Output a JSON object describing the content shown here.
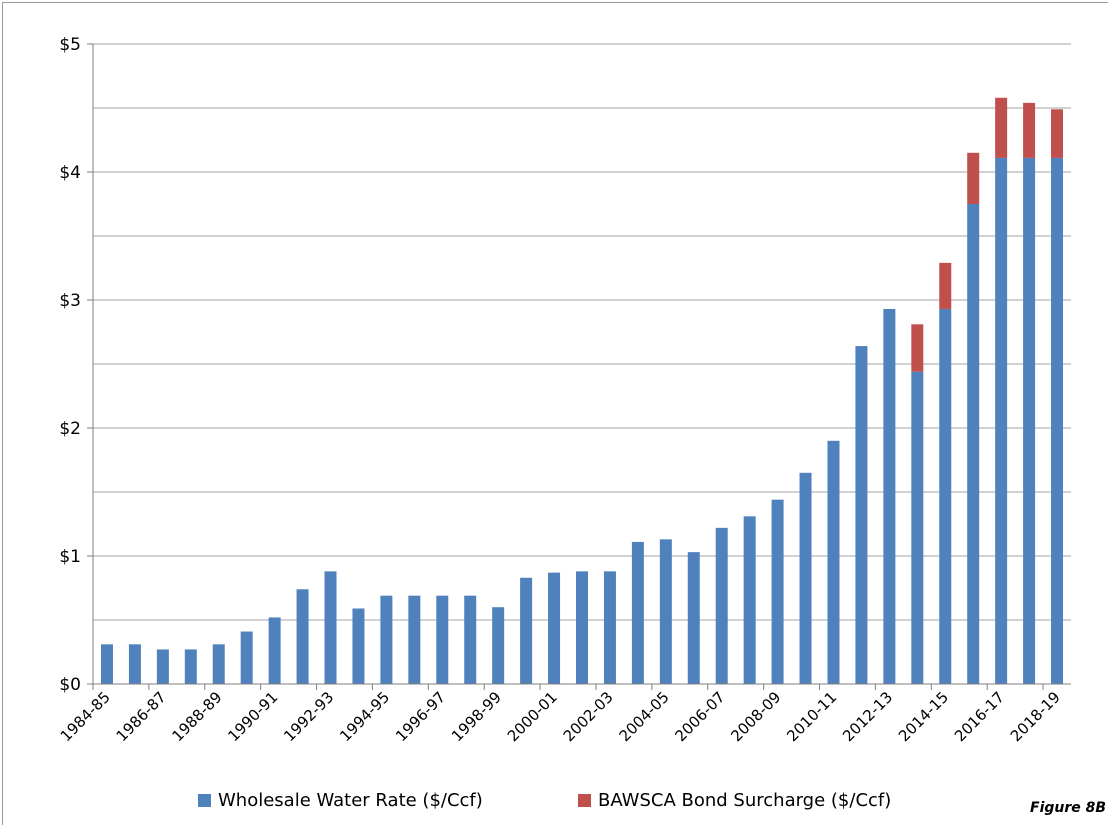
{
  "figure_label": "Figure 8B",
  "colors": {
    "wholesale": "#4f81bd",
    "surcharge": "#c0504d",
    "gridline": "#a6a6a6",
    "axis": "#7f7f7f"
  },
  "chart_data": {
    "type": "bar",
    "stacked": true,
    "categories": [
      "1984-85",
      "1985-86",
      "1986-87",
      "1987-88",
      "1988-89",
      "1989-90",
      "1990-91",
      "1991-92",
      "1992-93",
      "1993-94",
      "1994-95",
      "1995-96",
      "1996-97",
      "1997-98",
      "1998-99",
      "1999-00",
      "2000-01",
      "2001-02",
      "2002-03",
      "2003-04",
      "2004-05",
      "2005-06",
      "2006-07",
      "2007-08",
      "2008-09",
      "2009-10",
      "2010-11",
      "2011-12",
      "2012-13",
      "2013-14",
      "2014-15",
      "2015-16",
      "2016-17",
      "2017-18",
      "2018-19"
    ],
    "x_tick_labels": [
      "1984-85",
      "1986-87",
      "1988-89",
      "1990-91",
      "1992-93",
      "1994-95",
      "1996-97",
      "1998-99",
      "2000-01",
      "2002-03",
      "2004-05",
      "2006-07",
      "2008-09",
      "2010-11",
      "2012-13",
      "2014-15",
      "2016-17",
      "2018-19"
    ],
    "series": [
      {
        "name": "Wholesale Water Rate ($/Ccf)",
        "values": [
          0.31,
          0.31,
          0.27,
          0.27,
          0.31,
          0.41,
          0.52,
          0.74,
          0.88,
          0.59,
          0.69,
          0.69,
          0.69,
          0.69,
          0.6,
          0.83,
          0.87,
          0.88,
          0.88,
          1.11,
          1.13,
          1.03,
          1.22,
          1.31,
          1.44,
          1.65,
          1.9,
          2.64,
          2.93,
          2.44,
          2.93,
          3.75,
          4.11,
          4.11,
          4.11
        ]
      },
      {
        "name": "BAWSCA Bond Surcharge ($/Ccf)",
        "values": [
          0,
          0,
          0,
          0,
          0,
          0,
          0,
          0,
          0,
          0,
          0,
          0,
          0,
          0,
          0,
          0,
          0,
          0,
          0,
          0,
          0,
          0,
          0,
          0,
          0,
          0,
          0,
          0,
          0,
          0.37,
          0.36,
          0.4,
          0.47,
          0.43,
          0.38
        ]
      }
    ],
    "y_tick_labels": [
      "$0",
      "$1",
      "$2",
      "$3",
      "$4",
      "$5"
    ],
    "ylim": [
      0,
      5
    ],
    "minor_gridlines_step": 0.5,
    "grid": true,
    "legend": "bottom"
  }
}
